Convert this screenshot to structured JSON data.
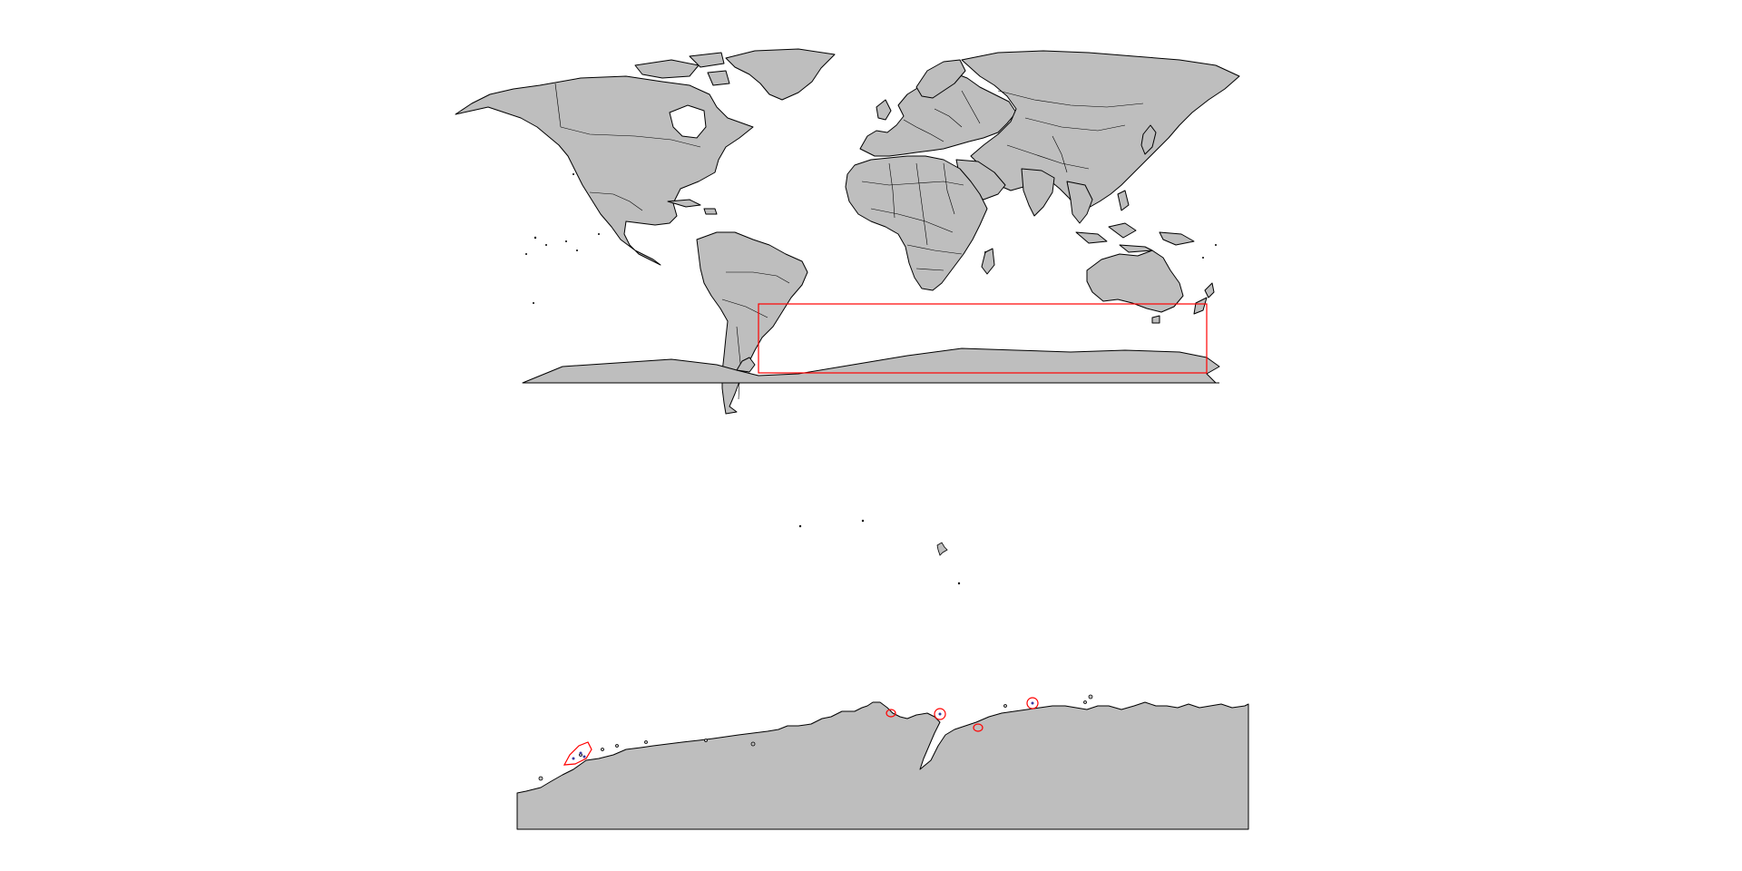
{
  "figure": {
    "panels": [
      {
        "id": "world-overview",
        "map_type": "world political outline map",
        "land_color": "#bebebe",
        "border_color": "#000000",
        "highlight_box_color": "#ff0000",
        "highlight_box_extent_approx": {
          "lon": [
            -60,
            180
          ],
          "lat": [
            -80,
            -45
          ]
        }
      },
      {
        "id": "antarctic-detail",
        "map_type": "zoomed coastline of East Antarctica",
        "land_color": "#bebebe",
        "site_marker_color": "#ff0000",
        "site_point_color": "#3a3aa0",
        "site_count": 6
      }
    ]
  }
}
